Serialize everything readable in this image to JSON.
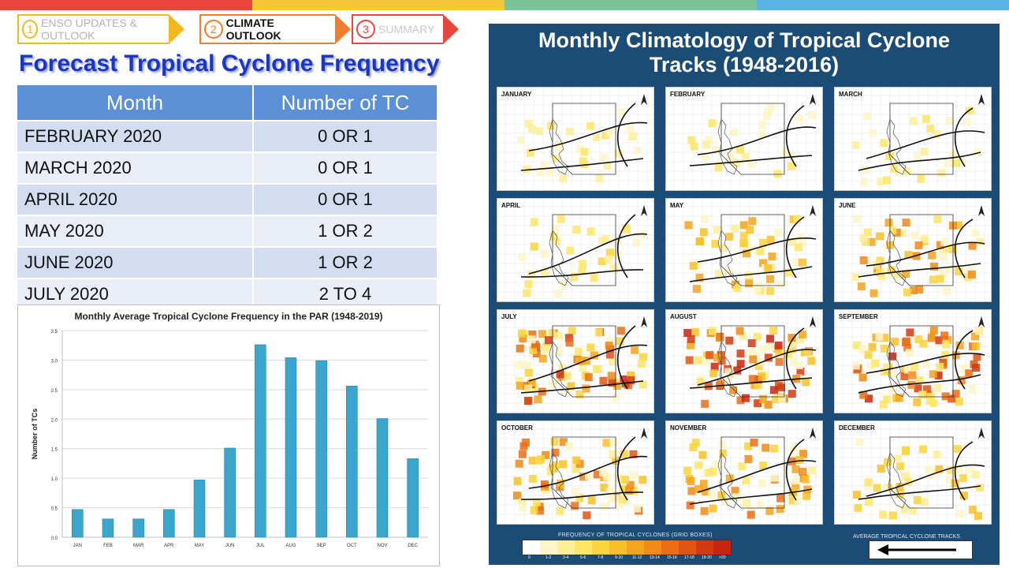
{
  "steps": [
    {
      "num": "1",
      "label": "ENSO UPDATES & OUTLOOK"
    },
    {
      "num": "2",
      "label": "CLIMATE OUTLOOK"
    },
    {
      "num": "3",
      "label": "SUMMARY"
    }
  ],
  "title": "Forecast Tropical Cyclone Frequency",
  "table": {
    "headers": [
      "Month",
      "Number of TC"
    ],
    "rows": [
      {
        "month": "FEBRUARY 2020",
        "count": "0 OR 1"
      },
      {
        "month": "MARCH 2020",
        "count": "0 OR 1"
      },
      {
        "month": "APRIL 2020",
        "count": "0 OR 1"
      },
      {
        "month": "MAY 2020",
        "count": "1 OR 2"
      },
      {
        "month": "JUNE 2020",
        "count": "1 OR 2"
      },
      {
        "month": "JULY 2020",
        "count": "2 TO 4"
      }
    ]
  },
  "chart_data": {
    "type": "bar",
    "title": "Monthly Average Tropical Cyclone Frequency in the PAR (1948-2019)",
    "xlabel": "",
    "ylabel": "Number of TCs",
    "categories": [
      "JAN",
      "FEB",
      "MAR",
      "APR",
      "MAY",
      "JUN",
      "JUL",
      "AUG",
      "SEP",
      "OCT",
      "NOV",
      "DEC"
    ],
    "values": [
      0.47,
      0.31,
      0.31,
      0.47,
      0.97,
      1.51,
      3.26,
      3.04,
      2.99,
      2.56,
      2.01,
      1.33
    ],
    "ylim": [
      0,
      3.5
    ],
    "yticks": [
      "0.0",
      "0.5",
      "1.0",
      "1.5",
      "2.0",
      "2.5",
      "3.0",
      "3.5"
    ],
    "grid": true,
    "bar_color": "#3aa6cf"
  },
  "climatology": {
    "title_line1": "Monthly Climatology of Tropical Cyclone",
    "title_line2": "Tracks (1948-2016)",
    "months": [
      {
        "name": "JANUARY",
        "intensity": 0.15
      },
      {
        "name": "FEBRUARY",
        "intensity": 0.1
      },
      {
        "name": "MARCH",
        "intensity": 0.12
      },
      {
        "name": "APRIL",
        "intensity": 0.18
      },
      {
        "name": "MAY",
        "intensity": 0.45
      },
      {
        "name": "JUNE",
        "intensity": 0.55
      },
      {
        "name": "JULY",
        "intensity": 0.9
      },
      {
        "name": "AUGUST",
        "intensity": 0.95
      },
      {
        "name": "SEPTEMBER",
        "intensity": 0.9
      },
      {
        "name": "OCTOBER",
        "intensity": 0.75
      },
      {
        "name": "NOVEMBER",
        "intensity": 0.6
      },
      {
        "name": "DECEMBER",
        "intensity": 0.35
      }
    ],
    "legend_title": "FREQUENCY OF TROPICAL CYCLONES (GRID BOXES)",
    "legend_labels": [
      "0",
      "1-2",
      "3-4",
      "5-6",
      "7-8",
      "9-10",
      "11-12",
      "13-14",
      "15-16",
      "17-18",
      "19-20",
      ">20"
    ],
    "legend_colors": [
      "#ffffff",
      "#fdf6c8",
      "#fdef98",
      "#fde566",
      "#fcd43c",
      "#f9bf28",
      "#f5a51d",
      "#f08a18",
      "#e96e16",
      "#e05414",
      "#d43a12",
      "#c82410"
    ],
    "avg_tracks_label": "AVERAGE TROPICAL CYCLONE TRACKS"
  }
}
